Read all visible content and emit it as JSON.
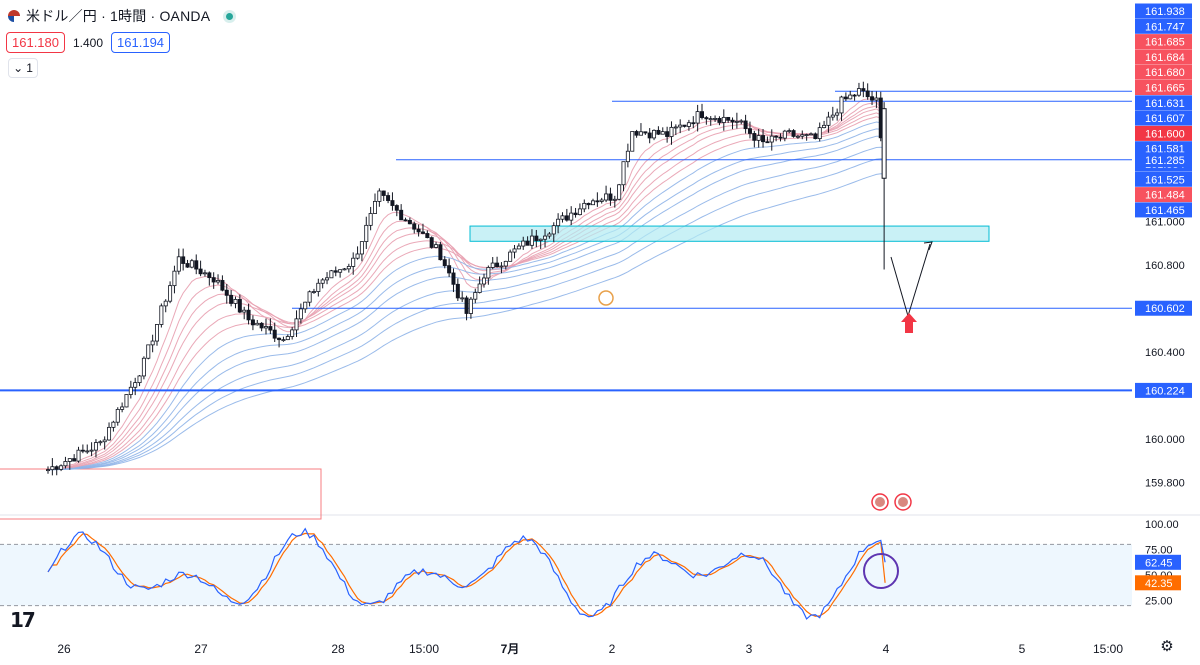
{
  "header": {
    "title": "米ドル／円 · 1時間 · OANDA",
    "sell_price": "161.180",
    "spread": "1.400",
    "buy_price": "161.194",
    "indicator_count": "1"
  },
  "price_axis": {
    "ticks": [
      "161.400",
      "161.200",
      "161.000",
      "160.800",
      "160.400",
      "160.000",
      "159.800"
    ],
    "labels": [
      {
        "text": "161.938",
        "value": 161.938,
        "color": "#2962ff"
      },
      {
        "text": "161.747",
        "value": 161.747,
        "color": "#2962ff"
      },
      {
        "text": "161.685",
        "value": 161.685,
        "color": "#f7525f"
      },
      {
        "text": "161.684",
        "value": 161.684,
        "color": "#f7525f"
      },
      {
        "text": "161.680",
        "value": 161.68,
        "color": "#f7525f"
      },
      {
        "text": "161.665",
        "value": 161.665,
        "color": "#f7525f"
      },
      {
        "text": "161.631",
        "value": 161.631,
        "color": "#2962ff"
      },
      {
        "text": "161.607",
        "value": 161.607,
        "color": "#2962ff"
      },
      {
        "text": "161.600",
        "value": 161.6,
        "color": "#f23645"
      },
      {
        "text": "161.581",
        "value": 161.581,
        "color": "#2962ff"
      },
      {
        "text": "161.554",
        "value": 161.554,
        "color": "#2962ff"
      },
      {
        "text": "161.525",
        "value": 161.525,
        "color": "#2962ff"
      },
      {
        "text": "161.484",
        "value": 161.484,
        "color": "#f7525f"
      },
      {
        "text": "161.465",
        "value": 161.465,
        "color": "#2962ff"
      },
      {
        "text": "161.285",
        "value": 161.285,
        "color": "#2962ff"
      },
      {
        "text": "160.602",
        "value": 160.602,
        "color": "#2962ff"
      },
      {
        "text": "160.224",
        "value": 160.224,
        "color": "#2962ff"
      }
    ]
  },
  "oscillator_axis": {
    "ticks": [
      "100.00",
      "75.00",
      "50.00",
      "25.00"
    ],
    "labels": [
      {
        "text": "62.45",
        "value": 62.45,
        "color": "#2962ff"
      },
      {
        "text": "42.35",
        "value": 42.35,
        "color": "#ff6d00"
      }
    ]
  },
  "time_axis": {
    "labels": [
      "26",
      "27",
      "28",
      "15:00",
      "7月",
      "2",
      "3",
      "4",
      "5",
      "15:00"
    ]
  },
  "chart_data": {
    "type": "candlestick",
    "symbol": "米ドル／円",
    "interval": "1時間",
    "source": "OANDA",
    "price_range": [
      159.66,
      162.02
    ],
    "horizontal_levels": [
      161.6,
      161.554,
      161.285,
      160.602,
      160.224
    ],
    "support_zone": [
      160.91,
      160.98
    ],
    "key_points": [
      {
        "t": 0,
        "price": 159.86
      },
      {
        "t": 12,
        "price": 159.98
      },
      {
        "t": 22,
        "price": 160.35
      },
      {
        "t": 30,
        "price": 160.83
      },
      {
        "t": 38,
        "price": 160.74
      },
      {
        "t": 46,
        "price": 160.55
      },
      {
        "t": 54,
        "price": 160.46
      },
      {
        "t": 62,
        "price": 160.72
      },
      {
        "t": 70,
        "price": 160.82
      },
      {
        "t": 76,
        "price": 161.12
      },
      {
        "t": 84,
        "price": 160.98
      },
      {
        "t": 90,
        "price": 160.85
      },
      {
        "t": 96,
        "price": 160.58
      },
      {
        "t": 100,
        "price": 160.76
      },
      {
        "t": 108,
        "price": 160.88
      },
      {
        "t": 116,
        "price": 160.98
      },
      {
        "t": 124,
        "price": 161.1
      },
      {
        "t": 130,
        "price": 161.12
      },
      {
        "t": 134,
        "price": 161.42
      },
      {
        "t": 142,
        "price": 161.4
      },
      {
        "t": 150,
        "price": 161.5
      },
      {
        "t": 158,
        "price": 161.46
      },
      {
        "t": 164,
        "price": 161.36
      },
      {
        "t": 170,
        "price": 161.4
      },
      {
        "t": 176,
        "price": 161.38
      },
      {
        "t": 182,
        "price": 161.55
      },
      {
        "t": 186,
        "price": 161.6
      },
      {
        "t": 190,
        "price": 161.55
      },
      {
        "t": 192,
        "price": 161.2
      }
    ],
    "last_candle": {
      "open": 161.52,
      "high": 161.55,
      "low": 160.78,
      "close": 161.2
    },
    "oscillator": {
      "levels": [
        80,
        20
      ],
      "k_last": 62.45,
      "d_last": 42.35
    }
  },
  "colors": {
    "bull": "#ffffff",
    "bear": "#131722",
    "ribbon_fast": "#e8a0b0",
    "ribbon_slow": "#8fb4e8",
    "level_line": "#2962ff",
    "zone_fill": "#b2ebf2",
    "zone_border": "#00bcd4",
    "arrow_up": "#f23645"
  }
}
